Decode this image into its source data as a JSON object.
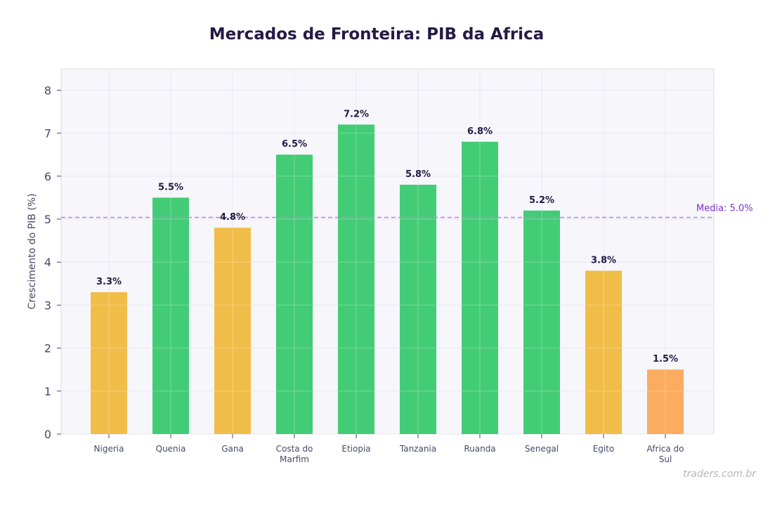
{
  "chart_data": {
    "type": "bar",
    "title": "Mercados de Fronteira: PIB da Africa",
    "xlabel": "",
    "ylabel": "Crescimento do PIB (%)",
    "categories": [
      "Nigeria",
      "Quenia",
      "Gana",
      "Costa do Marfim",
      "Etiopia",
      "Tanzania",
      "Ruanda",
      "Senegal",
      "Egito",
      "Africa do Sul"
    ],
    "values": [
      3.3,
      5.5,
      4.8,
      6.5,
      7.2,
      5.8,
      6.8,
      5.2,
      3.8,
      1.5
    ],
    "value_labels": [
      "3.3%",
      "5.5%",
      "4.8%",
      "6.5%",
      "7.2%",
      "5.8%",
      "6.8%",
      "5.2%",
      "3.8%",
      "1.5%"
    ],
    "ylim": [
      0,
      8.5
    ],
    "yticks": [
      0,
      1,
      2,
      3,
      4,
      5,
      6,
      7,
      8
    ],
    "grid": true,
    "reference_line": {
      "value": 5.04,
      "label": "Media: 5.0%",
      "style": "dashed",
      "color": "#b78ae8"
    },
    "bar_colors": [
      "#f0bd49",
      "#43cc76",
      "#f0bd49",
      "#43cc76",
      "#43cc76",
      "#43cc76",
      "#43cc76",
      "#43cc76",
      "#f0bd49",
      "#fbac5f"
    ],
    "colors": {
      "above_mean": "#43cc76",
      "below_mean": "#f0bd49",
      "lowest": "#fbac5f",
      "plot_background": "#f6f6fb",
      "title": "#241a45"
    }
  },
  "watermark": "traders.com.br"
}
